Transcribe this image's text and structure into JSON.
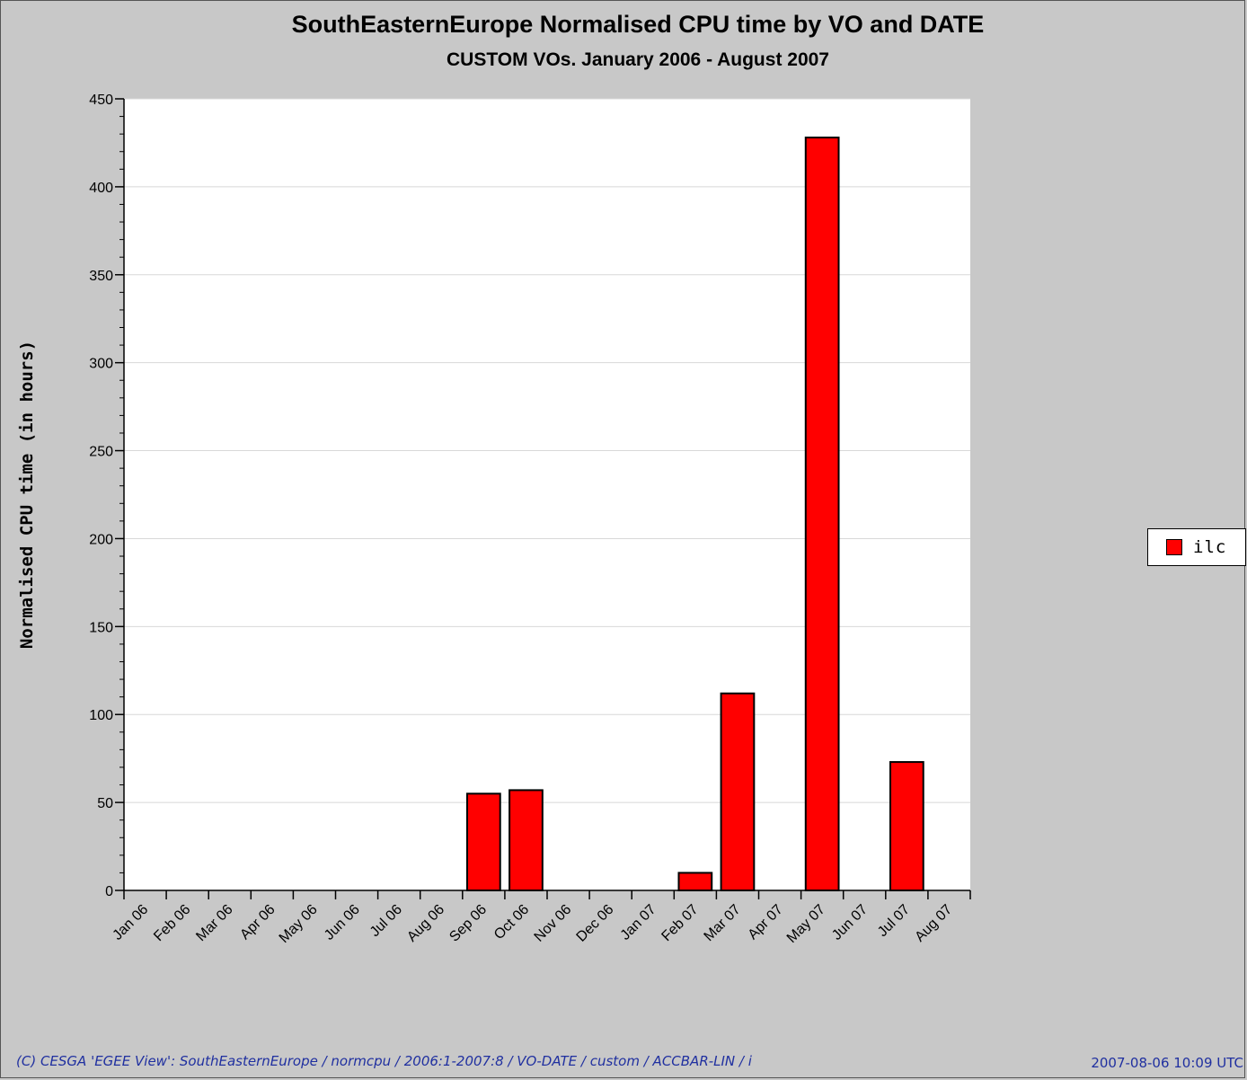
{
  "chart_data": {
    "type": "bar",
    "title": "SouthEasternEurope Normalised CPU time by VO and DATE",
    "subtitle": "CUSTOM VOs. January 2006 - August 2007",
    "xlabel": "",
    "ylabel": "Normalised CPU time (in hours)",
    "ylim": [
      0,
      450
    ],
    "yticks": [
      0,
      50,
      100,
      150,
      200,
      250,
      300,
      350,
      400,
      450
    ],
    "grid": true,
    "legend_position": "right",
    "categories": [
      "Jan 06",
      "Feb 06",
      "Mar 06",
      "Apr 06",
      "May 06",
      "Jun 06",
      "Jul 06",
      "Aug 06",
      "Sep 06",
      "Oct 06",
      "Nov 06",
      "Dec 06",
      "Jan 07",
      "Feb 07",
      "Mar 07",
      "Apr 07",
      "May 07",
      "Jun 07",
      "Jul 07",
      "Aug 07"
    ],
    "series": [
      {
        "name": "ilc",
        "color": "#ff0000",
        "values": [
          0,
          0,
          0,
          0,
          0,
          0,
          0,
          0,
          55,
          57,
          0,
          0,
          0,
          10,
          112,
          0,
          428,
          0,
          73,
          0
        ]
      }
    ]
  },
  "footer": {
    "credit": "(C) CESGA 'EGEE View': SouthEasternEurope / normcpu / 2006:1-2007:8 / VO-DATE / custom / ACCBAR-LIN / i",
    "timestamp": "2007-08-06 10:09 UTC"
  }
}
